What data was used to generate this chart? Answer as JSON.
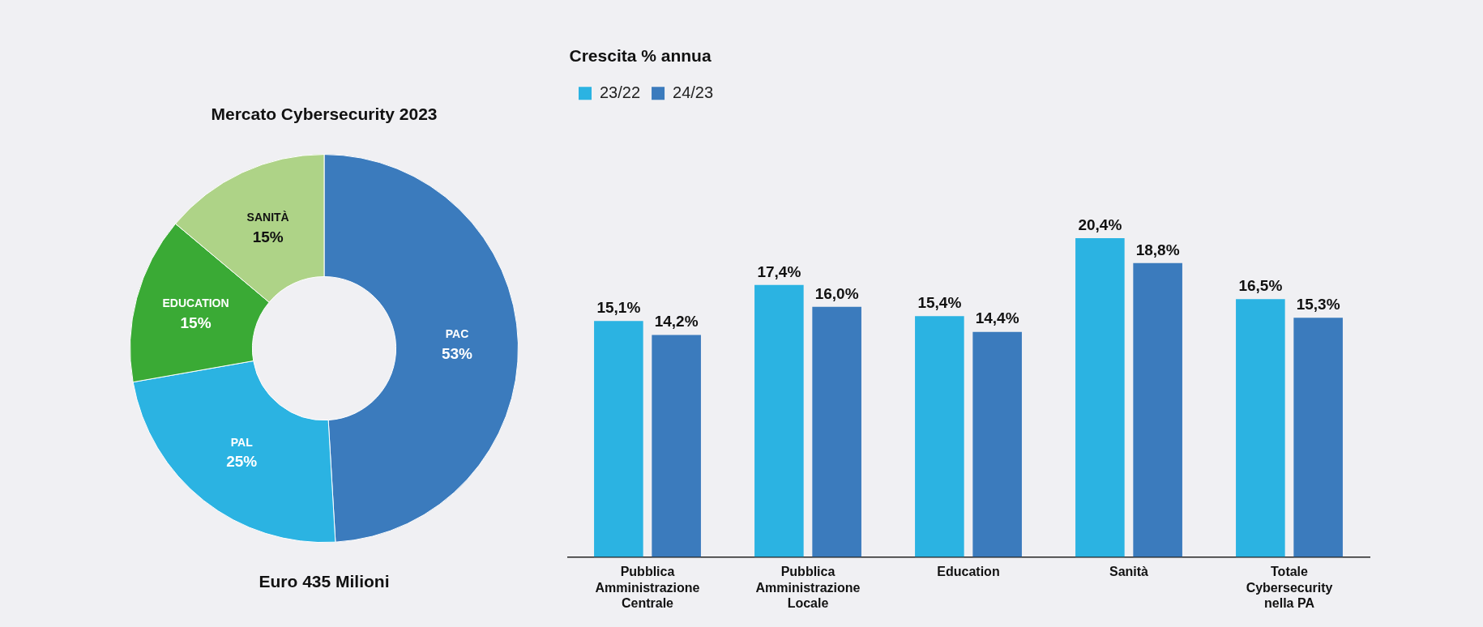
{
  "chart_data": [
    {
      "type": "donut",
      "title": "Mercato Cybersecurity 2023",
      "categories": [
        "PAC",
        "PAL",
        "EDUCATION",
        "SANITÀ"
      ],
      "values": [
        53,
        25,
        15,
        15
      ],
      "colors": [
        "#3b7bbd",
        "#2bb3e2",
        "#3aaa35",
        "#aed387"
      ],
      "value_labels": [
        "53%",
        "25%",
        "15%",
        "15%"
      ],
      "annotations": [
        "Euro 435 Milioni"
      ],
      "legend": false
    },
    {
      "type": "bar",
      "legend_title": "Crescita % annua",
      "legend": "top left",
      "grid": false,
      "categories": [
        "Pubblica Amministrazione Centrale",
        "Pubblica Amministrazione Locale",
        "Education",
        "Sanità",
        "Totale Cybersecurity nella PA"
      ],
      "series": [
        {
          "name": "23/22",
          "color": "#2bb3e2",
          "values": [
            15.1,
            17.4,
            15.4,
            20.4,
            16.5
          ],
          "value_labels": [
            "15,1%",
            "17,4%",
            "15,4%",
            "20,4%",
            "16,5%"
          ]
        },
        {
          "name": "24/23",
          "color": "#3b7bbd",
          "values": [
            14.2,
            16.0,
            14.4,
            18.8,
            15.3
          ],
          "value_labels": [
            "14,2%",
            "16,0%",
            "14,4%",
            "18,8%",
            "15,3%"
          ]
        }
      ]
    }
  ]
}
